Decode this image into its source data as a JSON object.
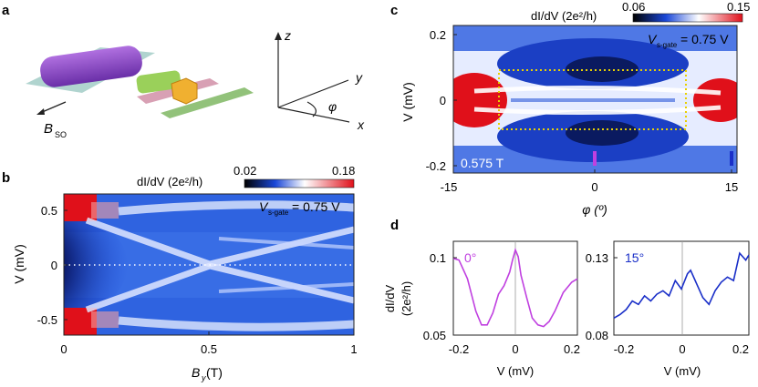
{
  "panels": {
    "a": {
      "letter": "a",
      "field_label": "B",
      "field_sub": "SO",
      "axes": {
        "z": "z",
        "y": "y",
        "x": "x",
        "angle": "φ"
      }
    },
    "b": {
      "letter": "b",
      "cbar_title": "dI/dV (2e²/h)",
      "cbar_min": "0.02",
      "cbar_max": "0.18",
      "gate_v": "V",
      "gate_sub": "s-gate",
      "gate_val": " = 0.75 V",
      "ylabel": "V (mV)",
      "xlabel": "B",
      "xlabel_sub": "y",
      "xlabel_unit": " (T)",
      "yticks": [
        "0.5",
        "0",
        "-0.5"
      ],
      "xticks": [
        "0",
        "0.5",
        "1"
      ]
    },
    "c": {
      "letter": "c",
      "cbar_title": "dI/dV (2e²/h)",
      "cbar_min": "0.06",
      "cbar_max": "0.15",
      "gate_v": "V",
      "gate_sub": "s-gate",
      "gate_val": " = 0.75 V",
      "field_note": "0.575 T",
      "ylabel": "V (mV)",
      "xlabel": "φ (º)",
      "yticks": [
        "0.2",
        "0",
        "-0.2"
      ],
      "xticks": [
        "-15",
        "0",
        "15"
      ]
    },
    "d": {
      "letter": "d",
      "ylabel_1": "dI/dV",
      "ylabel_2": "(2e²/h)",
      "left": {
        "label": "0°",
        "yticks": [
          "0.1",
          "0.05"
        ],
        "xticks": [
          "-0.2",
          "0",
          "0.2"
        ],
        "xlabel": "V (mV)"
      },
      "right": {
        "label": "15°",
        "yticks": [
          "0.13",
          "0.08"
        ],
        "xticks": [
          "-0.2",
          "0",
          "0.2"
        ],
        "xlabel": "V (mV)"
      }
    }
  },
  "colors": {
    "cmap_low": "#000000",
    "cmap_mid1": "#1a47d8",
    "cmap_mid2": "#ffffff",
    "cmap_high": "#e0101a",
    "trace_0": "#c040e0",
    "trace_15": "#1a2fc8",
    "box_dotted": "#e8d000"
  },
  "chart_data": [
    {
      "type": "line",
      "panel": "d-left",
      "x": [
        -0.22,
        -0.2,
        -0.17,
        -0.14,
        -0.12,
        -0.1,
        -0.08,
        -0.06,
        -0.04,
        -0.02,
        -0.01,
        0,
        0.01,
        0.02,
        0.04,
        0.06,
        0.08,
        0.1,
        0.12,
        0.14,
        0.17,
        0.2,
        0.22
      ],
      "y": [
        0.095,
        0.094,
        0.083,
        0.064,
        0.056,
        0.056,
        0.063,
        0.074,
        0.079,
        0.087,
        0.094,
        0.1,
        0.096,
        0.085,
        0.072,
        0.06,
        0.056,
        0.055,
        0.058,
        0.064,
        0.075,
        0.081,
        0.083
      ],
      "xlabel": "V (mV)",
      "ylabel": "dI/dV (2e²/h)",
      "xlim": [
        -0.22,
        0.22
      ],
      "ylim": [
        0.05,
        0.105
      ]
    },
    {
      "type": "line",
      "panel": "d-right",
      "x": [
        -0.22,
        -0.2,
        -0.18,
        -0.16,
        -0.14,
        -0.12,
        -0.1,
        -0.08,
        -0.06,
        -0.04,
        -0.02,
        0,
        0.02,
        0.03,
        0.05,
        0.07,
        0.09,
        0.11,
        0.13,
        0.15,
        0.17,
        0.19,
        0.21,
        0.22
      ],
      "y": [
        0.09,
        0.092,
        0.095,
        0.1,
        0.098,
        0.103,
        0.1,
        0.104,
        0.106,
        0.103,
        0.112,
        0.107,
        0.116,
        0.118,
        0.11,
        0.102,
        0.098,
        0.106,
        0.111,
        0.114,
        0.112,
        0.128,
        0.124,
        0.127
      ],
      "xlabel": "V (mV)",
      "ylabel": "dI/dV (2e²/h)",
      "xlim": [
        -0.22,
        0.22
      ],
      "ylim": [
        0.08,
        0.135
      ]
    }
  ]
}
